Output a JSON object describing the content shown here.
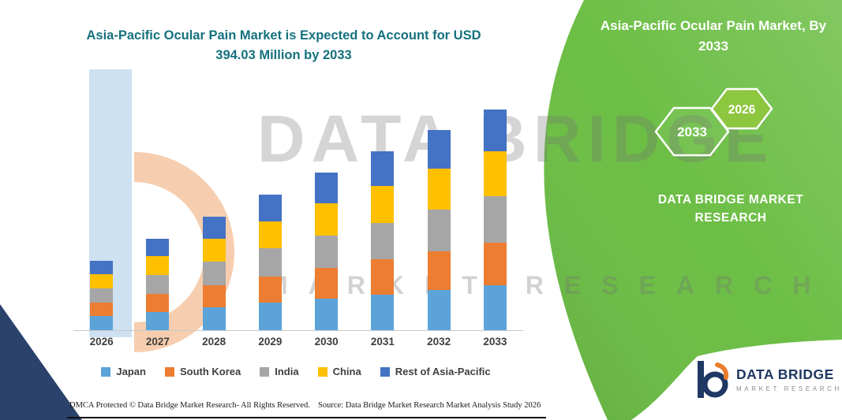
{
  "header": {
    "title_line1": "Asia-Pacific Ocular Pain Market is Expected to Account for USD",
    "title_line2": "394.03 Million by 2033",
    "title_color": "#15717E"
  },
  "chart_data": {
    "type": "bar",
    "stacked": true,
    "title": "Asia-Pacific Ocular Pain Market is Expected to Account for USD 394.03 Million by 2033",
    "unit": "USD Million",
    "categories": [
      "2026",
      "2027",
      "2028",
      "2029",
      "2030",
      "2031",
      "2032",
      "2033"
    ],
    "series": [
      {
        "name": "Japan",
        "color": "#5BA3D9",
        "values": [
          25,
          33,
          41,
          49,
          57,
          64,
          72,
          80
        ]
      },
      {
        "name": "South Korea",
        "color": "#ED7D31",
        "values": [
          24,
          32,
          39,
          47,
          54,
          62,
          69,
          77
        ]
      },
      {
        "name": "India",
        "color": "#A6A6A6",
        "values": [
          26,
          34,
          42,
          50,
          58,
          66,
          74,
          82
        ]
      },
      {
        "name": "China",
        "color": "#FFC000",
        "values": [
          25,
          33,
          41,
          49,
          57,
          65,
          73,
          81
        ]
      },
      {
        "name": "Rest of Asia-Pacific",
        "color": "#4472C4",
        "values": [
          24,
          32,
          40,
          47,
          55,
          62,
          70,
          74.03
        ]
      }
    ],
    "totals": [
      124,
      164,
      202,
      242,
      281,
      319,
      358,
      394.03
    ],
    "ylim": [
      0,
      400
    ],
    "grid": false,
    "legend_position": "bottom"
  },
  "right_panel": {
    "title_line1": "Asia-Pacific Ocular Pain Market, By",
    "title_line2": "2033",
    "hexagon_back_label": "2033",
    "hexagon_front_label": "2026",
    "brand_line1": "DATA BRIDGE MARKET",
    "brand_line2": "RESEARCH",
    "panel_green": "#6CBE45",
    "hexagon_fill_green": "#8DC63F"
  },
  "watermark": {
    "line1": "DATA BRIDGE",
    "line2": "MARKET RESEARCH"
  },
  "footer": {
    "dmca_text": "DMCA Protected © Data Bridge Market Research-  All Rights Reserved.",
    "source_text": "Source: Data Bridge Market Research  Market Analysis Study 2026"
  },
  "logo": {
    "brand": "DATA BRIDGE",
    "subtitle": "MARKET RESEARCH",
    "navy": "#1F3864",
    "orange": "#E87D2E"
  }
}
